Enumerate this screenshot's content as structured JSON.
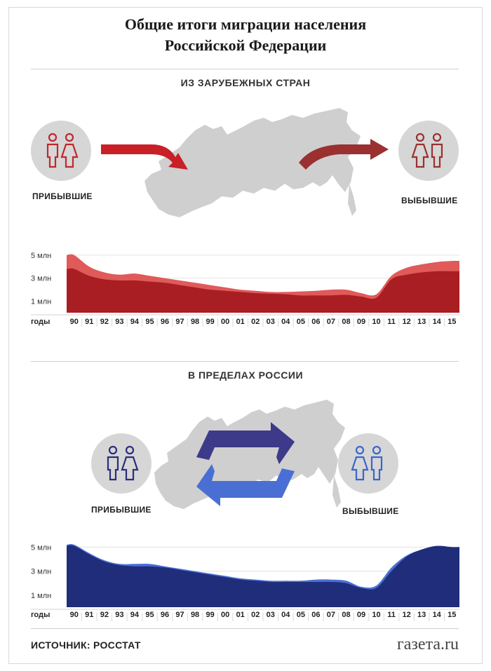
{
  "title_line1": "Общие итоги миграции населения",
  "title_line2": "Российской Федерации",
  "source": "ИСТОЧНИК: РОССТАТ",
  "logo": "газета.ru",
  "colors": {
    "foreign_arrivals": "#e05a5a",
    "foreign_departures": "#a81e22",
    "domestic_arrivals": "#4a6fd4",
    "domestic_departures": "#1f2d7a",
    "map": "#cfcfcf",
    "icon_red": "#c0272d",
    "icon_navy": "#2a2f7a",
    "icon_blue": "#3a66cc"
  },
  "foreign": {
    "section_title": "ИЗ ЗАРУБЕЖНЫХ СТРАН",
    "arrivals_label": "ПРИБЫВШИЕ",
    "departures_label": "ВЫБЫВШИЕ"
  },
  "domestic": {
    "section_title": "В ПРЕДЕЛАХ РОССИИ",
    "arrivals_label": "ПРИБЫВШИЕ",
    "departures_label": "ВЫБЫВШИЕ"
  },
  "chart_data": [
    {
      "type": "area",
      "x_axis_label": "годы",
      "categories": [
        "90",
        "91",
        "92",
        "93",
        "94",
        "95",
        "96",
        "97",
        "98",
        "99",
        "00",
        "01",
        "02",
        "03",
        "04",
        "05",
        "06",
        "07",
        "08",
        "09",
        "10",
        "11",
        "12",
        "13",
        "14",
        "15"
      ],
      "y_ticks": [
        "5 млн",
        "3 млн",
        "1 млн"
      ],
      "y_tick_values": [
        5,
        3,
        1
      ],
      "ylim": [
        0,
        5.6
      ],
      "series": [
        {
          "values": [
            5.0,
            4.0,
            3.5,
            3.3,
            3.4,
            3.2,
            3.0,
            2.8,
            2.6,
            2.4,
            2.2,
            2.0,
            1.9,
            1.8,
            1.8,
            1.85,
            1.9,
            2.0,
            2.0,
            1.7,
            1.6,
            3.2,
            3.9,
            4.2,
            4.4,
            4.5
          ]
        },
        {
          "values": [
            3.8,
            3.2,
            2.9,
            2.8,
            2.8,
            2.7,
            2.6,
            2.4,
            2.2,
            2.0,
            1.9,
            1.8,
            1.7,
            1.65,
            1.6,
            1.5,
            1.5,
            1.5,
            1.55,
            1.4,
            1.3,
            2.9,
            3.3,
            3.5,
            3.6,
            3.6
          ]
        }
      ]
    },
    {
      "type": "area",
      "x_axis_label": "годы",
      "categories": [
        "90",
        "91",
        "92",
        "93",
        "94",
        "95",
        "96",
        "97",
        "98",
        "99",
        "00",
        "01",
        "02",
        "03",
        "04",
        "05",
        "06",
        "07",
        "08",
        "09",
        "10",
        "11",
        "12",
        "13",
        "14",
        "15"
      ],
      "y_ticks": [
        "5 млн",
        "3 млн",
        "1 млн"
      ],
      "y_tick_values": [
        5,
        3,
        1
      ],
      "ylim": [
        0,
        5.6
      ],
      "series": [
        {
          "values": [
            5.2,
            4.5,
            3.9,
            3.6,
            3.6,
            3.6,
            3.4,
            3.2,
            3.0,
            2.8,
            2.6,
            2.4,
            2.3,
            2.2,
            2.2,
            2.2,
            2.3,
            2.3,
            2.2,
            1.7,
            1.8,
            3.3,
            4.3,
            4.8,
            5.1,
            5.0
          ]
        },
        {
          "values": [
            5.1,
            4.4,
            3.8,
            3.5,
            3.4,
            3.4,
            3.3,
            3.1,
            2.9,
            2.7,
            2.5,
            2.3,
            2.2,
            2.1,
            2.1,
            2.1,
            2.1,
            2.1,
            2.0,
            1.6,
            1.6,
            3.0,
            4.2,
            4.8,
            5.1,
            5.0
          ]
        }
      ]
    }
  ]
}
